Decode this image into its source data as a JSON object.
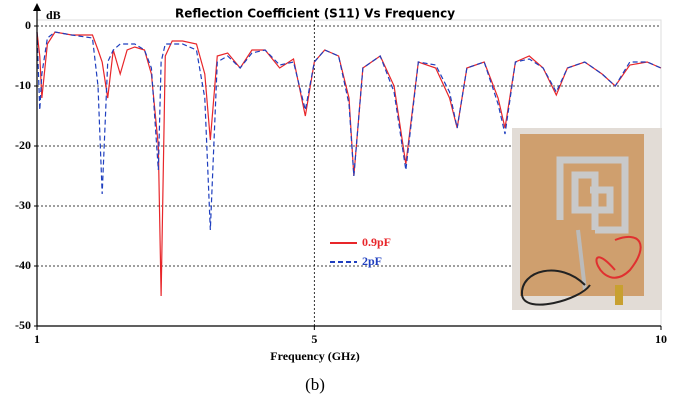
{
  "chart_data": {
    "type": "line",
    "title": "Reflection Coefficient (S11) Vs Frequency",
    "y_label": "dB",
    "x_label": "Frequency (GHz)",
    "caption": "(b)",
    "x": [
      1.0,
      1.04,
      1.07,
      1.15,
      1.26,
      1.5,
      1.8,
      1.88,
      1.94,
      2.02,
      2.1,
      2.2,
      2.3,
      2.41,
      2.55,
      2.65,
      2.75,
      2.79,
      2.85,
      2.95,
      3.1,
      3.3,
      3.42,
      3.5,
      3.6,
      3.75,
      3.93,
      4.1,
      4.29,
      4.5,
      4.7,
      4.87,
      5.0,
      5.15,
      5.35,
      5.5,
      5.57,
      5.7,
      5.95,
      6.15,
      6.32,
      6.5,
      6.75,
      6.95,
      7.06,
      7.2,
      7.45,
      7.65,
      7.75,
      7.9,
      8.1,
      8.3,
      8.49,
      8.65,
      8.9,
      9.15,
      9.34,
      9.55,
      9.8,
      10.0
    ],
    "series": [
      {
        "name": "0.9pF",
        "color": "#e8262a",
        "dashed": false,
        "values": [
          -1,
          -5,
          -12,
          -3,
          -1,
          -1.5,
          -1.5,
          -4,
          -6,
          -12,
          -4,
          -8,
          -4,
          -3.5,
          -4,
          -8,
          -20,
          -45,
          -5,
          -2.5,
          -2.5,
          -3,
          -8,
          -19,
          -5,
          -4.5,
          -7,
          -4,
          -4,
          -7,
          -5.5,
          -15,
          -6,
          -4,
          -5,
          -12,
          -25,
          -7,
          -5,
          -10,
          -23,
          -6,
          -7,
          -12,
          -17,
          -7,
          -6,
          -12,
          -17,
          -6,
          -5,
          -7,
          -11.5,
          -7,
          -6,
          -8,
          -10,
          -6.5,
          -6,
          -7
        ]
      },
      {
        "name": "2pF",
        "color": "#1f3fbf",
        "dashed": true,
        "values": [
          -1,
          -14,
          -8,
          -2,
          -1,
          -1.5,
          -2,
          -10,
          -28,
          -6,
          -4,
          -3,
          -3,
          -3,
          -4,
          -7,
          -24,
          -6,
          -3,
          -3,
          -3,
          -4,
          -12,
          -34,
          -6,
          -5,
          -7,
          -4.5,
          -4,
          -6.5,
          -6,
          -14,
          -6,
          -4,
          -5,
          -13,
          -25,
          -7,
          -5,
          -11,
          -24,
          -6,
          -6.5,
          -11,
          -17,
          -7,
          -6,
          -13,
          -18,
          -6,
          -5.5,
          -7,
          -11,
          -7,
          -6,
          -8,
          -10,
          -6,
          -6,
          -7
        ]
      }
    ],
    "xlim": [
      1,
      10
    ],
    "ylim": [
      -50,
      1
    ],
    "xticks": [
      1,
      5,
      10
    ],
    "yticks": [
      0,
      -10,
      -20,
      -30,
      -40,
      -50
    ],
    "grid": true
  }
}
